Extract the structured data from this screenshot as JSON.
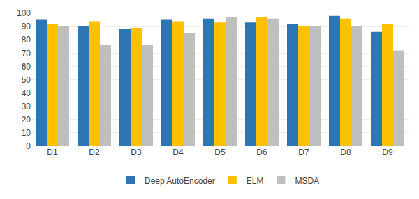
{
  "chart_data": {
    "type": "bar",
    "categories": [
      "D1",
      "D2",
      "D3",
      "D4",
      "D5",
      "D6",
      "D7",
      "D8",
      "D9"
    ],
    "series": [
      {
        "name": "Deep AutoEncoder",
        "color": "#2E75B6",
        "values": [
          95,
          90,
          88,
          95,
          96,
          93,
          92,
          98,
          86
        ]
      },
      {
        "name": "ELM",
        "color": "#FFC000",
        "values": [
          92,
          94,
          89,
          94,
          93,
          97,
          90,
          96,
          92
        ]
      },
      {
        "name": "MSDA",
        "color": "#BFBFBF",
        "values": [
          90,
          76,
          76,
          85,
          97,
          96,
          90,
          90,
          72
        ]
      }
    ],
    "ylim": [
      0,
      100
    ],
    "yticks": [
      0,
      10,
      20,
      30,
      40,
      50,
      60,
      70,
      80,
      90,
      100
    ],
    "grid": true,
    "legend": "bottom"
  }
}
